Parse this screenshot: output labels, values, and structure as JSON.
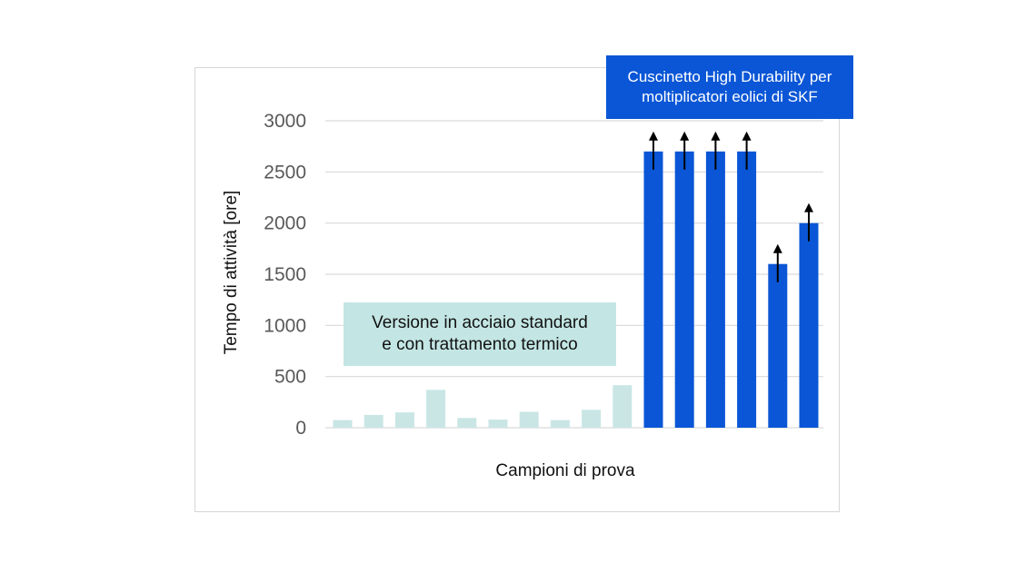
{
  "chart_data": {
    "type": "bar",
    "title": "",
    "xlabel": "Campioni di prova",
    "ylabel": "Tempo di attività [ore]",
    "ylim": [
      0,
      3000
    ],
    "yticks": [
      0,
      500,
      1000,
      1500,
      2000,
      2500,
      3000
    ],
    "grid": true,
    "series": [
      {
        "name": "Versione in acciaio standard e con trattamento termico",
        "color": "#c9e6e5",
        "values": [
          75,
          125,
          150,
          370,
          95,
          80,
          155,
          75,
          175,
          415
        ],
        "arrow": false
      },
      {
        "name": "Cuscinetto High Durability per moltiplicatori eolici di SKF",
        "color": "#0a56d6",
        "values": [
          2700,
          2700,
          2700,
          2700,
          1600,
          2000
        ],
        "arrow": true
      }
    ]
  },
  "annotations": {
    "standard_line1": "Versione in acciaio standard",
    "standard_line2": "e con trattamento termico",
    "hd_line1": "Cuscinetto High Durability per",
    "hd_line2": "moltiplicatori eolici di SKF"
  },
  "colors": {
    "standard_fill": "#c9e6e5",
    "standard_callout": "#c3e6e4",
    "hd_fill": "#0a56d6",
    "grid": "#d9d9d9",
    "arrow": "#000000"
  }
}
